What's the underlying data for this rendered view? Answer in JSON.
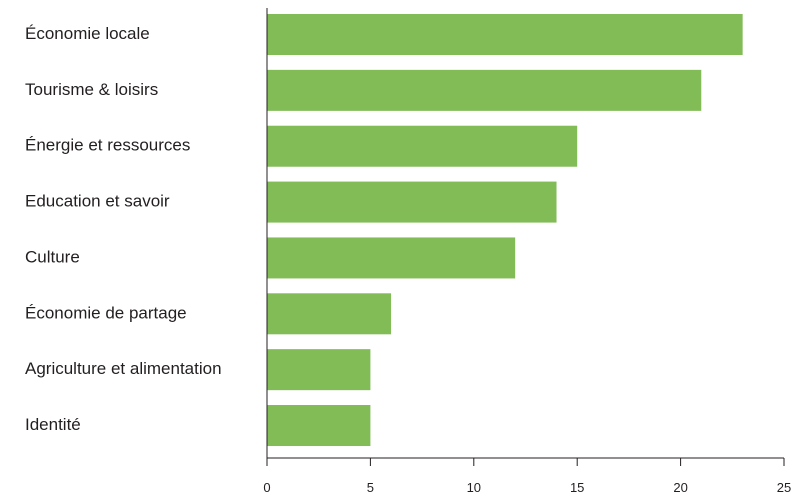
{
  "chart_data": {
    "type": "bar",
    "orientation": "horizontal",
    "categories": [
      "Économie locale",
      "Tourisme & loisirs",
      "Énergie et ressources",
      "Education et savoir",
      "Culture",
      "Économie de partage",
      "Agriculture et alimentation",
      "Identité"
    ],
    "values": [
      23,
      21,
      15,
      14,
      12,
      6,
      5,
      5
    ],
    "xlim": [
      0,
      25
    ],
    "xticks": [
      0,
      5,
      10,
      15,
      20,
      25
    ],
    "title": "",
    "xlabel": "",
    "ylabel": "",
    "grid": false,
    "legend": "none",
    "bar_color": "#82bc56",
    "axis_color": "#231f20"
  }
}
